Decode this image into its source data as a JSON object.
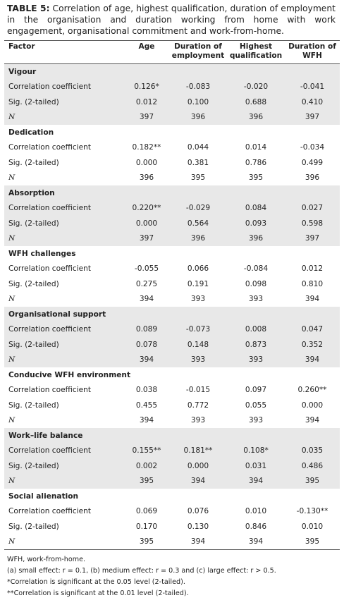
{
  "caption": {
    "label": "TABLE 5:",
    "text": "Correlation of age, highest qualification, duration of employment in the organisation and duration working from home with work engagement, organisational commitment and work-from-home."
  },
  "table": {
    "header": [
      "Factor",
      "Age",
      "Duration of employment",
      "Highest qualification",
      "Duration of WFH"
    ],
    "groups": [
      {
        "title": "Vigour",
        "rows": [
          [
            "Correlation coefficient",
            "0.126*",
            "-0.083",
            "-0.020",
            "-0.041"
          ],
          [
            "Sig. (2-tailed)",
            "0.012",
            "0.100",
            "0.688",
            "0.410"
          ],
          [
            "N",
            "397",
            "396",
            "396",
            "397"
          ]
        ]
      },
      {
        "title": "Dedication",
        "rows": [
          [
            "Correlation coefficient",
            "0.182**",
            "0.044",
            "0.014",
            "-0.034"
          ],
          [
            "Sig. (2-tailed)",
            "0.000",
            "0.381",
            "0.786",
            "0.499"
          ],
          [
            "N",
            "396",
            "395",
            "395",
            "396"
          ]
        ]
      },
      {
        "title": "Absorption",
        "rows": [
          [
            "Correlation coefficient",
            "0.220**",
            "-0.029",
            "0.084",
            "0.027"
          ],
          [
            "Sig. (2-tailed)",
            "0.000",
            "0.564",
            "0.093",
            "0.598"
          ],
          [
            "N",
            "397",
            "396",
            "396",
            "397"
          ]
        ]
      },
      {
        "title": "WFH challenges",
        "rows": [
          [
            "Correlation coefficient",
            "-0.055",
            "0.066",
            "-0.084",
            "0.012"
          ],
          [
            "Sig. (2-tailed)",
            "0.275",
            "0.191",
            "0.098",
            "0.810"
          ],
          [
            "N",
            "394",
            "393",
            "393",
            "394"
          ]
        ]
      },
      {
        "title": "Organisational support",
        "rows": [
          [
            "Correlation coefficient",
            "0.089",
            "-0.073",
            "0.008",
            "0.047"
          ],
          [
            "Sig. (2-tailed)",
            "0.078",
            "0.148",
            "0.873",
            "0.352"
          ],
          [
            "N",
            "394",
            "393",
            "393",
            "394"
          ]
        ]
      },
      {
        "title": "Conducive WFH environment",
        "rows": [
          [
            "Correlation coefficient",
            "0.038",
            "-0.015",
            "0.097",
            "0.260**"
          ],
          [
            "Sig. (2-tailed)",
            "0.455",
            "0.772",
            "0.055",
            "0.000"
          ],
          [
            "N",
            "394",
            "393",
            "393",
            "394"
          ]
        ]
      },
      {
        "title": "Work–life balance",
        "rows": [
          [
            "Correlation coefficient",
            "0.155**",
            "0.181**",
            "0.108*",
            "0.035"
          ],
          [
            "Sig. (2-tailed)",
            "0.002",
            "0.000",
            "0.031",
            "0.486"
          ],
          [
            "N",
            "395",
            "394",
            "394",
            "395"
          ]
        ]
      },
      {
        "title": "Social alienation",
        "rows": [
          [
            "Correlation coefficient",
            "0.069",
            "0.076",
            "0.010",
            "-0.130**"
          ],
          [
            "Sig. (2-tailed)",
            "0.170",
            "0.130",
            "0.846",
            "0.010"
          ],
          [
            "N",
            "395",
            "394",
            "394",
            "395"
          ]
        ]
      }
    ]
  },
  "footnotes": [
    "WFH, work-from-home.",
    "(a) small effect: r = 0.1, (b) medium effect: r = 0.3 and (c) large effect: r > 0.5.",
    "*Correlation is significant at the 0.05 level (2-tailed).",
    "**Correlation is significant at the 0.01 level (2-tailed)."
  ]
}
